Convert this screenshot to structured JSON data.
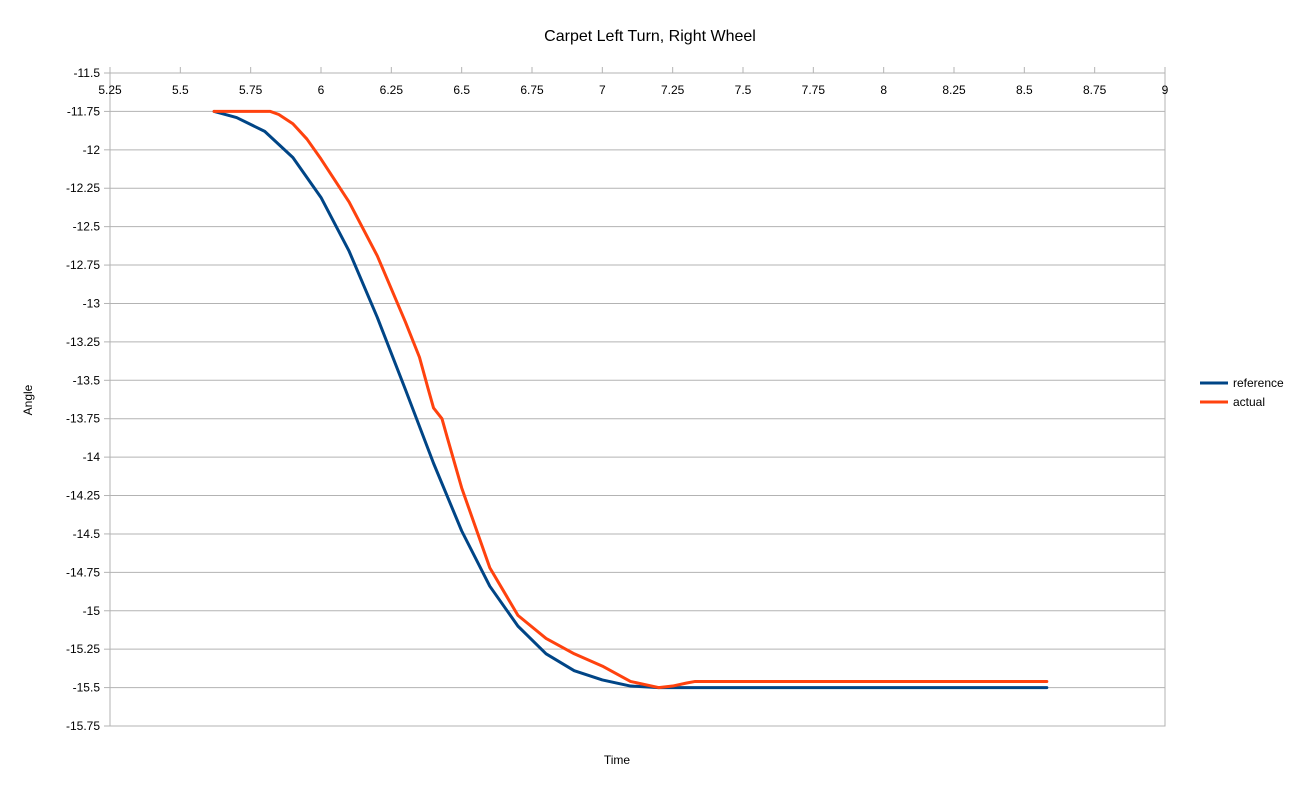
{
  "chart_data": {
    "type": "line",
    "title": "Carpet Left Turn, Right Wheel",
    "xlabel": "Time",
    "ylabel": "Angle",
    "xlim": [
      5.25,
      9
    ],
    "ylim": [
      -15.75,
      -11.5
    ],
    "x_ticks": [
      "5.25",
      "5.5",
      "5.75",
      "6",
      "6.25",
      "6.5",
      "6.75",
      "7",
      "7.25",
      "7.5",
      "7.75",
      "8",
      "8.25",
      "8.5",
      "8.75",
      "9"
    ],
    "y_ticks": [
      "-11.5",
      "-11.75",
      "-12",
      "-12.25",
      "-12.5",
      "-12.75",
      "-13",
      "-13.25",
      "-13.5",
      "-13.75",
      "-14",
      "-14.25",
      "-14.5",
      "-14.75",
      "-15",
      "-15.25",
      "-15.5",
      "-15.75"
    ],
    "x_axis_position": "top",
    "grid": "horizontal",
    "legend_position": "right",
    "series": [
      {
        "name": "reference",
        "color": "#004586",
        "x": [
          5.62,
          5.7,
          5.8,
          5.9,
          6.0,
          6.1,
          6.2,
          6.3,
          6.4,
          6.5,
          6.6,
          6.7,
          6.8,
          6.9,
          7.0,
          7.1,
          7.2,
          7.3,
          7.5,
          8.0,
          8.5,
          8.58
        ],
        "y": [
          -11.75,
          -11.79,
          -11.88,
          -12.05,
          -12.31,
          -12.66,
          -13.09,
          -13.56,
          -14.04,
          -14.48,
          -14.84,
          -15.1,
          -15.28,
          -15.39,
          -15.45,
          -15.49,
          -15.5,
          -15.5,
          -15.5,
          -15.5,
          -15.5,
          -15.5
        ]
      },
      {
        "name": "actual",
        "color": "#ff420e",
        "x": [
          5.62,
          5.7,
          5.8,
          5.82,
          5.85,
          5.9,
          5.95,
          6.0,
          6.05,
          6.1,
          6.2,
          6.3,
          6.35,
          6.38,
          6.4,
          6.43,
          6.45,
          6.5,
          6.6,
          6.7,
          6.8,
          6.9,
          7.0,
          7.1,
          7.2,
          7.25,
          7.3,
          7.33,
          7.5,
          8.0,
          8.5,
          8.58
        ],
        "y": [
          -11.75,
          -11.75,
          -11.75,
          -11.75,
          -11.77,
          -11.83,
          -11.93,
          -12.06,
          -12.2,
          -12.34,
          -12.69,
          -13.12,
          -13.35,
          -13.55,
          -13.68,
          -13.75,
          -13.88,
          -14.2,
          -14.72,
          -15.03,
          -15.18,
          -15.28,
          -15.36,
          -15.46,
          -15.5,
          -15.49,
          -15.47,
          -15.46,
          -15.46,
          -15.46,
          -15.46,
          -15.46
        ]
      }
    ]
  }
}
